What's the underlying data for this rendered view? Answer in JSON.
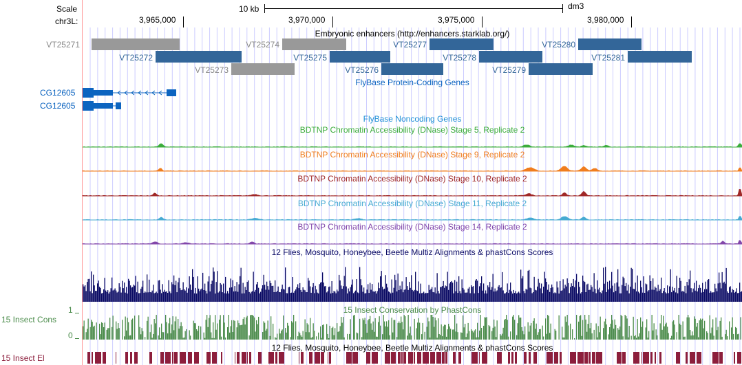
{
  "labels": {
    "scale": "Scale",
    "chrom": "chr3L:",
    "gene1": "CG12605",
    "gene2": "CG12605",
    "cons15": "15 Insect Cons",
    "cons15_el": "15 Insect El",
    "y_max": "1",
    "y_min": "0"
  },
  "ruler": {
    "scale_text": "10 kb",
    "assembly": "dm3",
    "ticks": [
      "3,965,000",
      "3,970,000",
      "3,975,000",
      "3,980,000"
    ]
  },
  "tracks": {
    "enhancers": "Embryonic enhancers (http://enhancers.starklab.org/)",
    "flybase_coding": "FlyBase Protein-Coding Genes",
    "flybase_noncoding": "FlyBase Noncoding Genes",
    "dnase_s5": "BDTNP Chromatin Accessibility (DNase) Stage 5, Replicate 2",
    "dnase_s9": "BDTNP Chromatin Accessibility (DNase) Stage 9, Replicate 2",
    "dnase_s10": "BDTNP Chromatin Accessibility (DNase) Stage 10, Replicate 2",
    "dnase_s11": "BDTNP Chromatin Accessibility (DNase) Stage 11, Replicate 2",
    "dnase_s14": "BDTNP Chromatin Accessibility (DNase) Stage 14, Replicate 2",
    "multiz": "12 Flies, Mosquito, Honeybee, Beetle Multiz Alignments & phastCons Scores",
    "insect_cons": "15 Insect Conservation by PhastCons",
    "multiz2": "12 Flies, Mosquito, Honeybee, Beetle Multiz Alignments & phastCons Scores"
  },
  "enhancers": [
    {
      "name": "VT25271",
      "color": "gray"
    },
    {
      "name": "VT25272",
      "color": "blue"
    },
    {
      "name": "VT25273",
      "color": "gray"
    },
    {
      "name": "VT25274",
      "color": "gray"
    },
    {
      "name": "VT25275",
      "color": "blue"
    },
    {
      "name": "VT25276",
      "color": "blue"
    },
    {
      "name": "VT25277",
      "color": "blue"
    },
    {
      "name": "VT25278",
      "color": "blue"
    },
    {
      "name": "VT25279",
      "color": "blue"
    },
    {
      "name": "VT25280",
      "color": "blue"
    },
    {
      "name": "VT25281",
      "color": "blue"
    }
  ],
  "colors": {
    "enhancer_blue": "#336699",
    "enhancer_gray": "#999999",
    "label_gray": "#888888",
    "gene_blue": "#0c64c0",
    "noncoding": "#1e8ed6",
    "s5": "#3cad3c",
    "s9": "#f07d1e",
    "s10": "#a02828",
    "s11": "#46aad2",
    "s14": "#8246aa",
    "multiz": "#0a0a64",
    "cons": "#4b8c4b",
    "elements": "#8c1e3c",
    "grid": "#ccccff"
  }
}
